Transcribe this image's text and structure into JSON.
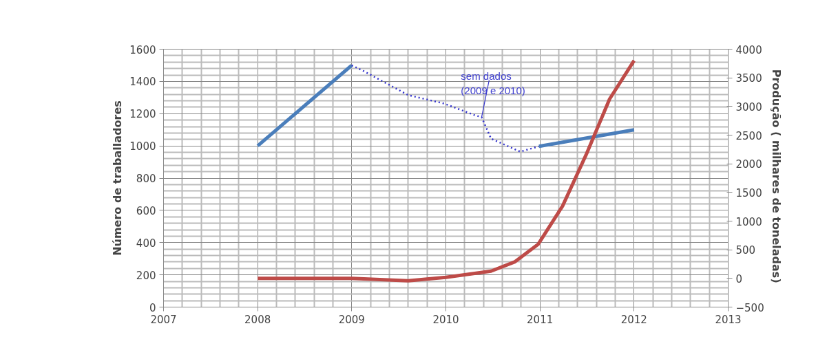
{
  "chart_data": {
    "type": "line",
    "ylabel": "Número de traballadores",
    "y2label": "Produção  ( milhares de toneladas)",
    "series": [
      {
        "color": "#4a7ebb",
        "line_style": "solid",
        "x": [
          2008,
          2009
        ],
        "values": [
          1000,
          1500
        ]
      },
      {
        "color": "#3333cc",
        "line_style": "dotted",
        "x": [
          2009,
          2009.14,
          2009.6,
          2009.98,
          2010.3,
          2010.38,
          2010.48,
          2010.79,
          2010.99
        ],
        "values": [
          1500,
          1460,
          1315,
          1263,
          1192,
          1178,
          1045,
          964,
          997
        ]
      },
      {
        "color": "#4a7ebb",
        "line_style": "solid",
        "x": [
          2010.99,
          2012
        ],
        "values": [
          997,
          1100
        ]
      },
      {
        "color": "#be4b48",
        "line_style": "solid",
        "axis": "y2",
        "x": [
          2008,
          2009,
          2009.6,
          2010,
          2010.48,
          2010.73,
          2010.98,
          2011.24,
          2011.49,
          2011.74,
          2012
        ],
        "values": [
          0,
          0,
          -40,
          20,
          127,
          287,
          594,
          1262,
          2156,
          3130,
          3800
        ]
      }
    ],
    "annotations": [
      {
        "text": "sem dados\n(2009 e 2010)",
        "x": 2010.38,
        "y": 1178
      }
    ],
    "xlim": [
      2007,
      2013
    ],
    "xticks": [
      2007,
      2008,
      2009,
      2010,
      2011,
      2012,
      2013
    ],
    "ylim": [
      0,
      1600
    ],
    "yticks": [
      0,
      200,
      400,
      600,
      800,
      1000,
      1200,
      1400,
      1600
    ],
    "y2lim": [
      -500,
      4000
    ],
    "y2ticks": [
      -500,
      0,
      500,
      1000,
      1500,
      2000,
      2500,
      3000,
      3500,
      4000
    ],
    "grid": true,
    "marker": "none"
  }
}
